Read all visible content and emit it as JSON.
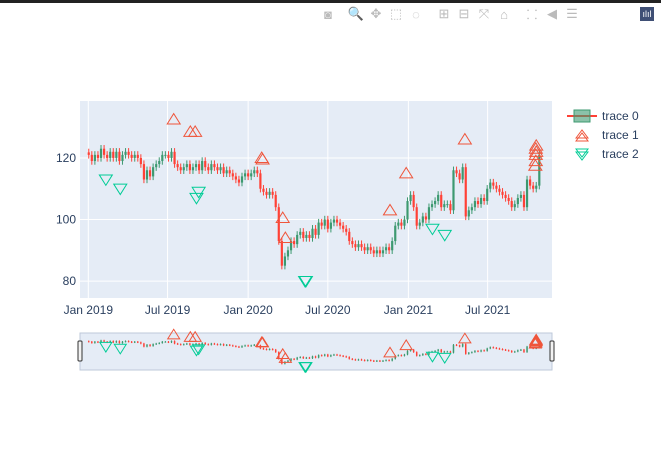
{
  "modebar": {
    "buttons": [
      {
        "name": "camera-icon",
        "glyph": "◙"
      },
      {
        "name": "zoom-icon",
        "glyph": "🔍"
      },
      {
        "name": "pan-icon",
        "glyph": "✥"
      },
      {
        "name": "box-select-icon",
        "glyph": "⬚"
      },
      {
        "name": "lasso-icon",
        "glyph": "◌"
      },
      {
        "name": "zoom-in-icon",
        "glyph": "⊞"
      },
      {
        "name": "zoom-out-icon",
        "glyph": "⊟"
      },
      {
        "name": "autoscale-icon",
        "glyph": "⤧"
      },
      {
        "name": "reset-axes-icon",
        "glyph": "⌂"
      },
      {
        "name": "spike-lines-icon",
        "glyph": "⸬"
      },
      {
        "name": "hover-closest-icon",
        "glyph": "◀"
      },
      {
        "name": "hover-compare-icon",
        "glyph": "☰"
      }
    ],
    "logo": "ılıl"
  },
  "colors": {
    "increasing": "#3D9970",
    "decreasing": "#FF4136",
    "trace1": "#EF553B",
    "trace2": "#00CC96",
    "plot_bg": "#E5ECF6"
  },
  "chart_data": {
    "type": "candlestick",
    "title": "",
    "xlabel": "",
    "ylabel": "",
    "xrange": [
      "2018-12-13",
      "2021-11-25"
    ],
    "yrange": [
      74.5,
      138.5
    ],
    "yticks": [
      80,
      100,
      120
    ],
    "xticks": [
      {
        "date": "2019-01-01",
        "label": "Jan 2019"
      },
      {
        "date": "2019-07-01",
        "label": "Jul 2019"
      },
      {
        "date": "2020-01-01",
        "label": "Jan 2020"
      },
      {
        "date": "2020-07-01",
        "label": "Jul 2020"
      },
      {
        "date": "2021-01-01",
        "label": "Jan 2021"
      },
      {
        "date": "2021-07-01",
        "label": "Jul 2021"
      }
    ],
    "grid": true,
    "legend_position": "top-right",
    "rangeslider": true,
    "trace0": {
      "name": "trace 0",
      "start": "2019-01-02",
      "step_days": 7,
      "close": [
        121,
        119,
        121,
        120,
        123,
        121,
        120,
        122,
        120,
        122,
        119,
        121,
        122,
        121,
        120,
        121,
        120,
        118,
        113,
        116,
        114,
        117,
        118,
        119,
        121,
        121,
        120,
        122,
        118,
        117,
        116,
        117,
        118,
        116,
        117,
        118,
        116,
        119,
        117,
        116,
        118,
        117,
        116,
        117,
        115,
        116,
        115,
        114,
        113,
        112,
        114,
        115,
        114,
        115,
        116,
        115,
        110,
        109,
        108,
        109,
        108,
        104,
        93,
        85,
        88,
        90,
        93,
        92,
        95,
        96,
        94,
        95,
        94,
        97,
        95,
        99,
        98,
        100,
        97,
        99,
        100,
        99,
        98,
        97,
        96,
        93,
        92,
        91,
        92,
        91,
        90,
        91,
        90,
        89,
        90,
        89,
        90,
        91,
        90,
        93,
        98,
        99,
        98,
        100,
        106,
        108,
        104,
        98,
        99,
        101,
        100,
        104,
        105,
        106,
        108,
        104,
        105,
        105,
        103,
        116,
        115,
        113,
        117,
        101,
        103,
        104,
        106,
        105,
        107,
        106,
        110,
        112,
        111,
        110,
        109,
        108,
        107,
        106,
        104,
        105,
        107,
        108,
        104,
        113,
        111,
        110,
        111,
        121
      ]
    },
    "trace1": {
      "name": "trace 1",
      "symbol": "triangle-up-open",
      "points": [
        [
          "2019-07-15",
          132.5
        ],
        [
          "2019-08-22",
          128.5
        ],
        [
          "2019-09-02",
          128.5
        ],
        [
          "2020-02-01",
          120
        ],
        [
          "2020-02-03",
          119.5
        ],
        [
          "2020-03-20",
          100.5
        ],
        [
          "2020-03-26",
          94
        ],
        [
          "2020-11-20",
          103
        ],
        [
          "2020-12-27",
          115
        ],
        [
          "2021-05-10",
          126
        ],
        [
          "2021-10-20",
          124
        ],
        [
          "2021-10-19",
          123
        ],
        [
          "2021-10-20",
          122
        ],
        [
          "2021-10-19",
          121
        ],
        [
          "2021-10-19",
          119
        ],
        [
          "2021-10-18",
          117.5
        ]
      ]
    },
    "trace2": {
      "name": "trace 2",
      "symbol": "triangle-down-open",
      "points": [
        [
          "2019-02-10",
          113
        ],
        [
          "2019-03-15",
          110
        ],
        [
          "2019-09-05",
          107
        ],
        [
          "2019-09-10",
          109
        ],
        [
          "2020-05-10",
          80
        ],
        [
          "2020-05-12",
          80
        ],
        [
          "2021-02-25",
          97
        ],
        [
          "2021-03-25",
          95
        ]
      ]
    }
  }
}
